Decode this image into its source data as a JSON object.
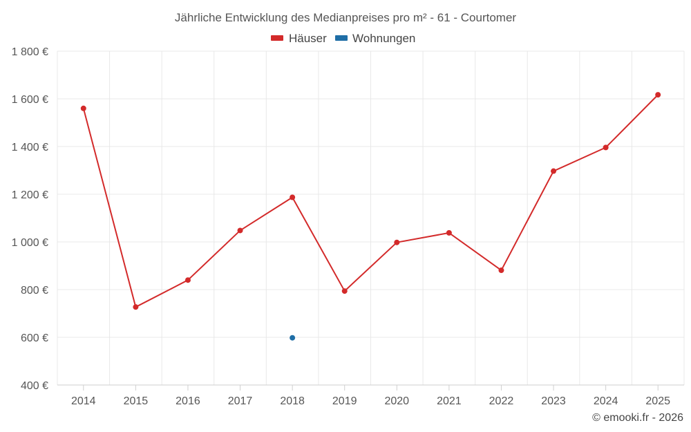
{
  "chart_data": {
    "type": "line",
    "title": "Jährliche Entwicklung des Medianpreises pro m² - 61 - Courtomer",
    "x": [
      "2014",
      "2015",
      "2016",
      "2017",
      "2018",
      "2019",
      "2020",
      "2021",
      "2022",
      "2023",
      "2024",
      "2025"
    ],
    "ylim": [
      400,
      1800
    ],
    "yticks": [
      400,
      600,
      800,
      1000,
      1200,
      1400,
      1600,
      1800
    ],
    "ytick_labels": [
      "400 €",
      "600 €",
      "800 €",
      "1 000 €",
      "1 200 €",
      "1 400 €",
      "1 600 €",
      "1 800 €"
    ],
    "grid": true,
    "legend_position": "top-center",
    "series": [
      {
        "name": "Häuser",
        "color": "#d32a2a",
        "values": [
          1560,
          727,
          840,
          1048,
          1187,
          794,
          998,
          1038,
          881,
          1297,
          1396,
          1617
        ]
      },
      {
        "name": "Wohnungen",
        "color": "#1f6ea6",
        "values": [
          null,
          null,
          null,
          null,
          598,
          null,
          null,
          null,
          null,
          null,
          null,
          null
        ]
      }
    ]
  },
  "credit": "© emooki.fr - 2026"
}
